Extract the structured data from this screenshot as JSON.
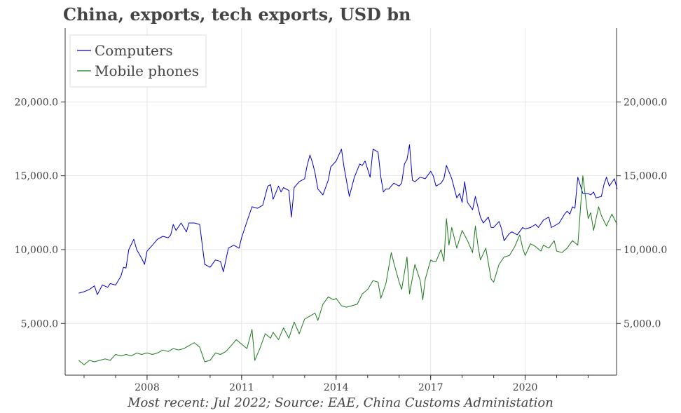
{
  "chart_data": {
    "type": "line",
    "title": "China, exports, tech exports, USD bn",
    "footnote": "Most recent: Jul 2022; Source: EAE, China Customs Administation",
    "xlabel": "",
    "ylabel": "",
    "ylim": [
      1500,
      25000
    ],
    "xlim": [
      2005.4,
      2022.9
    ],
    "grid": true,
    "legend_position": "top-left",
    "x_ticks": [
      2008,
      2011,
      2014,
      2017,
      2020
    ],
    "x_tick_labels": [
      "2008",
      "2011",
      "2014",
      "2017",
      "2020"
    ],
    "y_ticks": [
      5000,
      10000,
      15000,
      20000
    ],
    "y_tick_labels": [
      "5,000.0",
      "10,000.0",
      "15,000.0",
      "20,000.0"
    ],
    "series": [
      {
        "name": "Computers",
        "color": "#0000cc",
        "points": [
          [
            2005.83,
            7050
          ],
          [
            2006.0,
            7150
          ],
          [
            2006.17,
            7300
          ],
          [
            2006.33,
            7550
          ],
          [
            2006.42,
            6950
          ],
          [
            2006.58,
            7600
          ],
          [
            2006.75,
            7450
          ],
          [
            2006.83,
            7700
          ],
          [
            2007.0,
            7600
          ],
          [
            2007.17,
            8200
          ],
          [
            2007.25,
            8800
          ],
          [
            2007.33,
            8750
          ],
          [
            2007.42,
            10000
          ],
          [
            2007.58,
            10700
          ],
          [
            2007.67,
            10000
          ],
          [
            2007.83,
            9400
          ],
          [
            2007.92,
            9000
          ],
          [
            2008.0,
            9900
          ],
          [
            2008.17,
            10300
          ],
          [
            2008.33,
            10700
          ],
          [
            2008.5,
            10900
          ],
          [
            2008.67,
            10800
          ],
          [
            2008.75,
            11000
          ],
          [
            2008.83,
            11700
          ],
          [
            2008.92,
            11300
          ],
          [
            2009.08,
            11800
          ],
          [
            2009.25,
            11200
          ],
          [
            2009.33,
            11800
          ],
          [
            2009.5,
            11800
          ],
          [
            2009.67,
            11700
          ],
          [
            2009.83,
            9000
          ],
          [
            2010.0,
            8800
          ],
          [
            2010.17,
            9300
          ],
          [
            2010.33,
            9200
          ],
          [
            2010.42,
            8500
          ],
          [
            2010.58,
            10100
          ],
          [
            2010.75,
            10300
          ],
          [
            2010.92,
            10100
          ],
          [
            2011.0,
            10800
          ],
          [
            2011.17,
            11900
          ],
          [
            2011.33,
            12900
          ],
          [
            2011.5,
            12800
          ],
          [
            2011.67,
            13000
          ],
          [
            2011.83,
            14300
          ],
          [
            2011.92,
            14400
          ],
          [
            2012.0,
            13400
          ],
          [
            2012.17,
            14300
          ],
          [
            2012.25,
            13900
          ],
          [
            2012.33,
            14200
          ],
          [
            2012.5,
            14000
          ],
          [
            2012.58,
            12200
          ],
          [
            2012.67,
            14200
          ],
          [
            2012.83,
            14600
          ],
          [
            2013.0,
            14800
          ],
          [
            2013.08,
            15700
          ],
          [
            2013.17,
            16400
          ],
          [
            2013.25,
            15900
          ],
          [
            2013.33,
            15200
          ],
          [
            2013.42,
            14100
          ],
          [
            2013.58,
            13700
          ],
          [
            2013.75,
            14700
          ],
          [
            2013.83,
            15600
          ],
          [
            2014.0,
            16000
          ],
          [
            2014.17,
            16800
          ],
          [
            2014.25,
            15600
          ],
          [
            2014.42,
            13600
          ],
          [
            2014.58,
            14900
          ],
          [
            2014.75,
            15800
          ],
          [
            2014.83,
            15700
          ],
          [
            2014.92,
            16000
          ],
          [
            2015.08,
            14900
          ],
          [
            2015.17,
            16800
          ],
          [
            2015.33,
            16600
          ],
          [
            2015.42,
            14900
          ],
          [
            2015.5,
            13900
          ],
          [
            2015.58,
            14100
          ],
          [
            2015.67,
            14100
          ],
          [
            2015.83,
            14500
          ],
          [
            2016.0,
            14300
          ],
          [
            2016.08,
            14500
          ],
          [
            2016.17,
            15800
          ],
          [
            2016.25,
            16100
          ],
          [
            2016.33,
            17100
          ],
          [
            2016.42,
            14700
          ],
          [
            2016.5,
            14600
          ],
          [
            2016.67,
            14900
          ],
          [
            2016.83,
            14800
          ],
          [
            2017.0,
            15300
          ],
          [
            2017.08,
            15000
          ],
          [
            2017.17,
            14300
          ],
          [
            2017.33,
            14500
          ],
          [
            2017.42,
            14800
          ],
          [
            2017.5,
            15700
          ],
          [
            2017.67,
            14800
          ],
          [
            2017.83,
            13500
          ],
          [
            2017.92,
            13800
          ],
          [
            2018.0,
            13200
          ],
          [
            2018.08,
            14600
          ],
          [
            2018.17,
            13200
          ],
          [
            2018.33,
            12700
          ],
          [
            2018.42,
            13600
          ],
          [
            2018.58,
            12200
          ],
          [
            2018.67,
            11800
          ],
          [
            2018.83,
            12200
          ],
          [
            2018.92,
            11500
          ],
          [
            2019.0,
            11500
          ],
          [
            2019.17,
            11900
          ],
          [
            2019.25,
            11400
          ],
          [
            2019.33,
            10600
          ],
          [
            2019.5,
            11100
          ],
          [
            2019.58,
            11200
          ],
          [
            2019.75,
            11000
          ],
          [
            2019.92,
            11500
          ],
          [
            2020.0,
            11400
          ],
          [
            2020.17,
            11500
          ],
          [
            2020.33,
            11700
          ],
          [
            2020.42,
            11500
          ],
          [
            2020.58,
            12000
          ],
          [
            2020.75,
            12200
          ],
          [
            2020.83,
            11500
          ],
          [
            2020.92,
            11600
          ],
          [
            2021.08,
            11800
          ],
          [
            2021.25,
            12400
          ],
          [
            2021.33,
            12600
          ],
          [
            2021.42,
            12400
          ],
          [
            2021.5,
            12900
          ],
          [
            2021.58,
            12800
          ],
          [
            2021.67,
            14900
          ],
          [
            2021.83,
            13800
          ],
          [
            2022.0,
            13800
          ],
          [
            2022.08,
            13700
          ],
          [
            2022.17,
            13900
          ],
          [
            2022.25,
            13500
          ],
          [
            2022.42,
            13600
          ],
          [
            2022.5,
            14400
          ],
          [
            2022.58,
            14900
          ],
          [
            2022.67,
            14300
          ],
          [
            2022.83,
            14800
          ],
          [
            2022.92,
            14100
          ]
        ]
      },
      {
        "name": "Mobile phones",
        "color": "#1a7a1a",
        "points": [
          [
            2005.83,
            2500
          ],
          [
            2006.0,
            2200
          ],
          [
            2006.17,
            2500
          ],
          [
            2006.33,
            2400
          ],
          [
            2006.5,
            2500
          ],
          [
            2006.67,
            2600
          ],
          [
            2006.83,
            2500
          ],
          [
            2007.0,
            2900
          ],
          [
            2007.17,
            2800
          ],
          [
            2007.33,
            2900
          ],
          [
            2007.5,
            2800
          ],
          [
            2007.67,
            3000
          ],
          [
            2007.83,
            2900
          ],
          [
            2008.0,
            3000
          ],
          [
            2008.17,
            2900
          ],
          [
            2008.33,
            3000
          ],
          [
            2008.5,
            3200
          ],
          [
            2008.67,
            3100
          ],
          [
            2008.83,
            3300
          ],
          [
            2009.0,
            3200
          ],
          [
            2009.17,
            3300
          ],
          [
            2009.33,
            3500
          ],
          [
            2009.5,
            3700
          ],
          [
            2009.67,
            3400
          ],
          [
            2009.83,
            2400
          ],
          [
            2010.0,
            2500
          ],
          [
            2010.17,
            3000
          ],
          [
            2010.33,
            2900
          ],
          [
            2010.5,
            3100
          ],
          [
            2010.67,
            3500
          ],
          [
            2010.83,
            3900
          ],
          [
            2011.0,
            3600
          ],
          [
            2011.17,
            3300
          ],
          [
            2011.33,
            4600
          ],
          [
            2011.42,
            2500
          ],
          [
            2011.58,
            3300
          ],
          [
            2011.75,
            4300
          ],
          [
            2011.92,
            4000
          ],
          [
            2012.0,
            4400
          ],
          [
            2012.17,
            3900
          ],
          [
            2012.33,
            4700
          ],
          [
            2012.5,
            4000
          ],
          [
            2012.67,
            5100
          ],
          [
            2012.83,
            4300
          ],
          [
            2013.0,
            5300
          ],
          [
            2013.17,
            5500
          ],
          [
            2013.33,
            5700
          ],
          [
            2013.42,
            5200
          ],
          [
            2013.58,
            6300
          ],
          [
            2013.75,
            6800
          ],
          [
            2013.92,
            6600
          ],
          [
            2014.0,
            6700
          ],
          [
            2014.17,
            6200
          ],
          [
            2014.33,
            6100
          ],
          [
            2014.5,
            6200
          ],
          [
            2014.67,
            6300
          ],
          [
            2014.83,
            7000
          ],
          [
            2015.0,
            7300
          ],
          [
            2015.17,
            7900
          ],
          [
            2015.33,
            7800
          ],
          [
            2015.42,
            6700
          ],
          [
            2015.58,
            7700
          ],
          [
            2015.75,
            9800
          ],
          [
            2015.83,
            9100
          ],
          [
            2016.0,
            7800
          ],
          [
            2016.08,
            7300
          ],
          [
            2016.25,
            9500
          ],
          [
            2016.33,
            7000
          ],
          [
            2016.5,
            9000
          ],
          [
            2016.67,
            7900
          ],
          [
            2016.75,
            6600
          ],
          [
            2016.83,
            8000
          ],
          [
            2017.0,
            9300
          ],
          [
            2017.08,
            9200
          ],
          [
            2017.17,
            9200
          ],
          [
            2017.33,
            10000
          ],
          [
            2017.42,
            9200
          ],
          [
            2017.5,
            12100
          ],
          [
            2017.58,
            10300
          ],
          [
            2017.67,
            11500
          ],
          [
            2017.83,
            10100
          ],
          [
            2018.0,
            11300
          ],
          [
            2018.17,
            10600
          ],
          [
            2018.33,
            9800
          ],
          [
            2018.42,
            11600
          ],
          [
            2018.5,
            10300
          ],
          [
            2018.58,
            9300
          ],
          [
            2018.75,
            10100
          ],
          [
            2018.92,
            8000
          ],
          [
            2019.0,
            7800
          ],
          [
            2019.17,
            9000
          ],
          [
            2019.33,
            9500
          ],
          [
            2019.5,
            9600
          ],
          [
            2019.67,
            10200
          ],
          [
            2019.83,
            11000
          ],
          [
            2019.92,
            10100
          ],
          [
            2020.0,
            9600
          ],
          [
            2020.17,
            10400
          ],
          [
            2020.33,
            10200
          ],
          [
            2020.5,
            9900
          ],
          [
            2020.58,
            10300
          ],
          [
            2020.75,
            10100
          ],
          [
            2020.92,
            10600
          ],
          [
            2021.0,
            9900
          ],
          [
            2021.17,
            9800
          ],
          [
            2021.33,
            10100
          ],
          [
            2021.5,
            10600
          ],
          [
            2021.67,
            10300
          ],
          [
            2021.83,
            15000
          ],
          [
            2022.0,
            12100
          ],
          [
            2022.08,
            12500
          ],
          [
            2022.17,
            11300
          ],
          [
            2022.33,
            12900
          ],
          [
            2022.42,
            12300
          ],
          [
            2022.58,
            11600
          ],
          [
            2022.75,
            12400
          ],
          [
            2022.92,
            11700
          ]
        ]
      }
    ]
  }
}
